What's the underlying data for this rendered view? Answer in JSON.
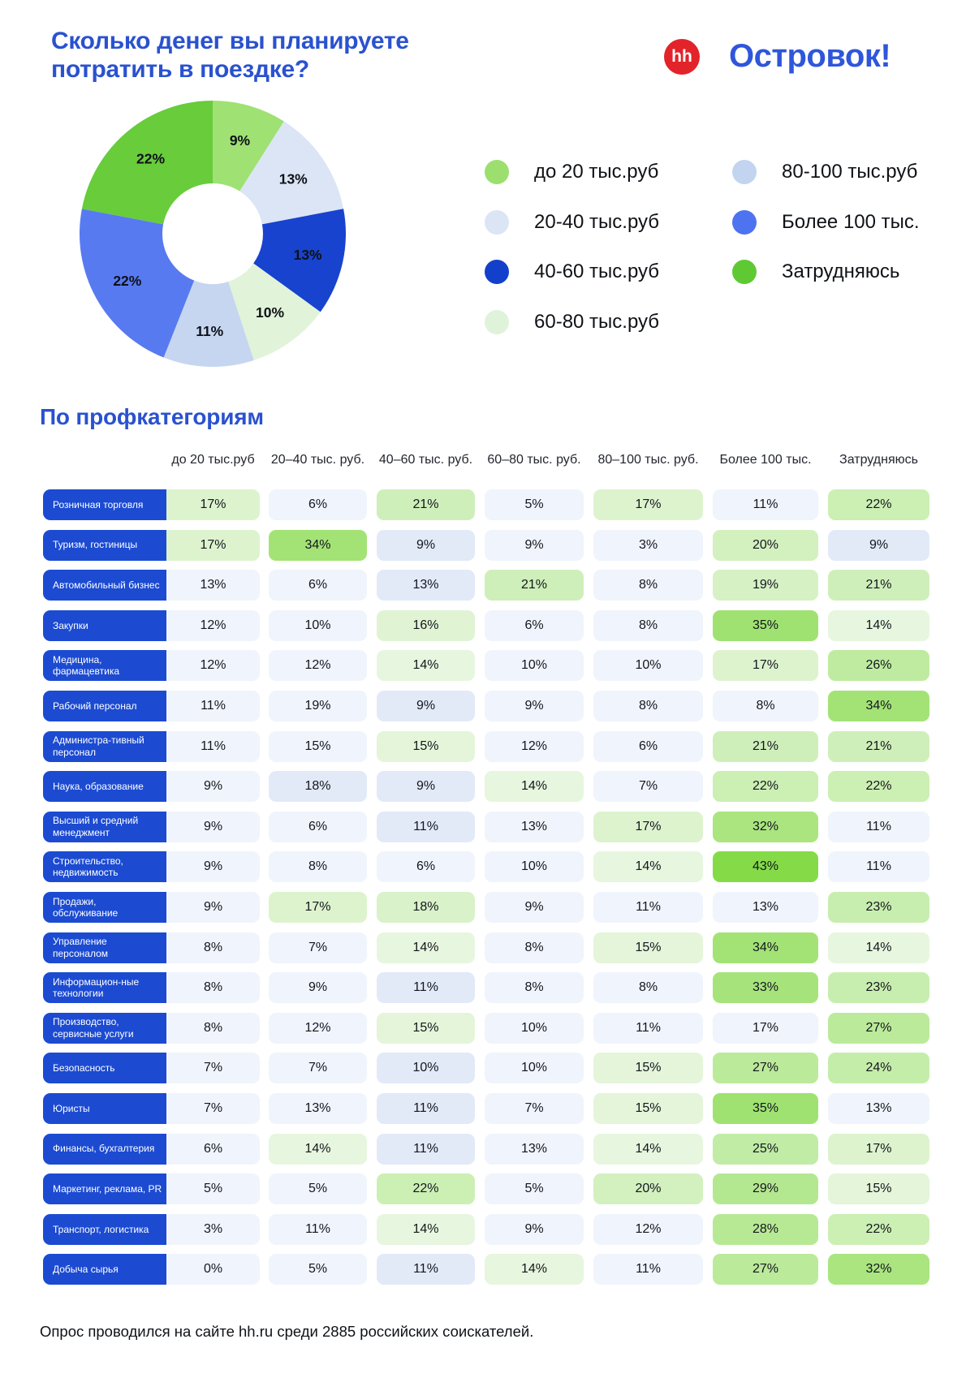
{
  "header": {
    "title_line1": "Сколько денег вы планируете",
    "title_line2": "потратить в поездке?",
    "brand": {
      "hh_label": "hh",
      "partner_name": "Островок!"
    }
  },
  "colors": {
    "accent_blue": "#2A52CF",
    "ostrovok_blue": "#2F56DA",
    "hh_red": "#E2232A",
    "category_block_blue": "#1C4BD2",
    "cell_blue_light": "#F0F4FC",
    "cell_blue_dark": "#E2EAF8",
    "cell_green_pale": "#E7F6DE",
    "cell_green_bright": "#84DB47"
  },
  "legend": {
    "items": [
      {
        "label": "до 20 тыс.руб",
        "color": "#9CDF6F"
      },
      {
        "label": "20-40 тыс.руб",
        "color": "#DBE5F5"
      },
      {
        "label": "40-60 тыс.руб",
        "color": "#1240CB"
      },
      {
        "label": "60-80 тыс.руб",
        "color": "#DFF3DA"
      },
      {
        "label": "80-100 тыс.руб",
        "color": "#C3D4F0"
      },
      {
        "label": "Более 100 тыс.",
        "color": "#4E73F0"
      },
      {
        "label": "Затрудняюсь",
        "color": "#5FC933"
      }
    ]
  },
  "section_title": "По профкатегориям",
  "footer": "Опрос проводился на сайте hh.ru среди 2885 российских соискателей.",
  "chart_data": [
    {
      "type": "pie",
      "subtype": "donut",
      "title": "Сколько денег вы планируете потратить в поездке?",
      "categories": [
        "до 20 тыс.руб",
        "20-40 тыс.руб",
        "40-60 тыс.руб",
        "60-80 тыс.руб",
        "80-100 тыс.руб",
        "Более 100 тыс.",
        "Затрудняюсь"
      ],
      "values": [
        9,
        13,
        13,
        10,
        11,
        22,
        22
      ],
      "colors": [
        "#9FE173",
        "#DBE5F6",
        "#1843CE",
        "#E1F3D9",
        "#C6D6F1",
        "#587AF1",
        "#68CC3B"
      ],
      "start_angle_deg": 0,
      "direction": "clockwise",
      "inner_radius_ratio": 0.38,
      "legend_position": "right"
    },
    {
      "type": "heatmap",
      "title": "По профкатегориям",
      "columns": [
        "до 20 тыс.руб",
        "20–40 тыс. руб.",
        "40–60 тыс. руб.",
        "60–80 тыс. руб.",
        "80–100 тыс. руб.",
        "Более 100 тыс.",
        "Затрудняюсь"
      ],
      "unit": "%",
      "tone_legend": "0 = light blue cell, 1 = darker blue cell, 2 = green cell (shade scales with value)",
      "rows": [
        {
          "label": "Розничная торговля",
          "values": [
            17,
            6,
            21,
            5,
            17,
            11,
            22
          ],
          "tones": [
            2,
            0,
            2,
            0,
            2,
            0,
            2
          ]
        },
        {
          "label": "Туризм, гостиницы",
          "values": [
            17,
            34,
            9,
            9,
            3,
            20,
            9
          ],
          "tones": [
            2,
            2,
            1,
            0,
            0,
            2,
            1
          ]
        },
        {
          "label": "Автомобильный бизнес",
          "values": [
            13,
            6,
            13,
            21,
            8,
            19,
            21
          ],
          "tones": [
            0,
            0,
            1,
            2,
            0,
            2,
            2
          ]
        },
        {
          "label": "Закупки",
          "values": [
            12,
            10,
            16,
            6,
            8,
            35,
            14
          ],
          "tones": [
            0,
            0,
            2,
            0,
            0,
            2,
            2
          ]
        },
        {
          "label": "Медицина, фармацевтика",
          "values": [
            12,
            12,
            14,
            10,
            10,
            17,
            26
          ],
          "tones": [
            0,
            0,
            2,
            0,
            0,
            2,
            2
          ]
        },
        {
          "label": "Рабочий персонал",
          "values": [
            11,
            19,
            9,
            9,
            8,
            8,
            34
          ],
          "tones": [
            0,
            0,
            1,
            0,
            0,
            0,
            2
          ]
        },
        {
          "label": "Администра-тивный персонал",
          "values": [
            11,
            15,
            15,
            12,
            6,
            21,
            21
          ],
          "tones": [
            0,
            0,
            2,
            0,
            0,
            2,
            2
          ]
        },
        {
          "label": "Наука, образование",
          "values": [
            9,
            18,
            9,
            14,
            7,
            22,
            22
          ],
          "tones": [
            0,
            1,
            1,
            2,
            0,
            2,
            2
          ]
        },
        {
          "label": "Высший и средний менеджмент",
          "values": [
            9,
            6,
            11,
            13,
            17,
            32,
            11
          ],
          "tones": [
            0,
            0,
            1,
            0,
            2,
            2,
            0
          ]
        },
        {
          "label": "Строительство, недвижимость",
          "values": [
            9,
            8,
            6,
            10,
            14,
            43,
            11
          ],
          "tones": [
            0,
            0,
            0,
            0,
            2,
            2,
            0
          ]
        },
        {
          "label": "Продажи, обслуживание",
          "values": [
            9,
            17,
            18,
            9,
            11,
            13,
            23
          ],
          "tones": [
            0,
            2,
            2,
            0,
            0,
            0,
            2
          ]
        },
        {
          "label": "Управление персоналом",
          "values": [
            8,
            7,
            14,
            8,
            15,
            34,
            14
          ],
          "tones": [
            0,
            0,
            2,
            0,
            2,
            2,
            2
          ]
        },
        {
          "label": "Информацион-ные технологии",
          "values": [
            8,
            9,
            11,
            8,
            8,
            33,
            23
          ],
          "tones": [
            0,
            0,
            1,
            0,
            0,
            2,
            2
          ]
        },
        {
          "label": "Производство, сервисные услуги",
          "values": [
            8,
            12,
            15,
            10,
            11,
            17,
            27
          ],
          "tones": [
            0,
            0,
            2,
            0,
            0,
            0,
            2
          ]
        },
        {
          "label": "Безопасность",
          "values": [
            7,
            7,
            10,
            10,
            15,
            27,
            24
          ],
          "tones": [
            0,
            0,
            1,
            0,
            2,
            2,
            2
          ]
        },
        {
          "label": "Юристы",
          "values": [
            7,
            13,
            11,
            7,
            15,
            35,
            13
          ],
          "tones": [
            0,
            0,
            1,
            0,
            2,
            2,
            0
          ]
        },
        {
          "label": "Финансы, бухгалтерия",
          "values": [
            6,
            14,
            11,
            13,
            14,
            25,
            17
          ],
          "tones": [
            0,
            2,
            1,
            0,
            2,
            2,
            2
          ]
        },
        {
          "label": "Маркетинг, реклама, PR",
          "values": [
            5,
            5,
            22,
            5,
            20,
            29,
            15
          ],
          "tones": [
            0,
            0,
            2,
            0,
            2,
            2,
            2
          ]
        },
        {
          "label": "Транспорт, логистика",
          "values": [
            3,
            11,
            14,
            9,
            12,
            28,
            22
          ],
          "tones": [
            0,
            0,
            2,
            0,
            0,
            2,
            2
          ]
        },
        {
          "label": "Добыча сырья",
          "values": [
            0,
            5,
            11,
            14,
            11,
            27,
            32
          ],
          "tones": [
            0,
            0,
            1,
            2,
            0,
            2,
            2
          ]
        }
      ]
    }
  ]
}
